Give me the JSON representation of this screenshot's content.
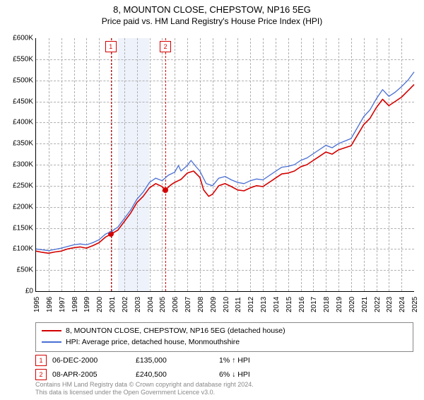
{
  "title": "8, MOUNTON CLOSE, CHEPSTOW, NP16 5EG",
  "subtitle": "Price paid vs. HM Land Registry's House Price Index (HPI)",
  "chart": {
    "type": "line",
    "xYears": {
      "min": 1995,
      "max": 2025,
      "step": 1
    },
    "yAxis": {
      "min": 0,
      "max": 600000,
      "step": 50000,
      "prefix": "£",
      "labels": [
        "£0",
        "£50K",
        "£100K",
        "£150K",
        "£200K",
        "£250K",
        "£300K",
        "£350K",
        "£400K",
        "£450K",
        "£500K",
        "£550K",
        "£600K"
      ]
    },
    "grid_color": "#b0b0b0",
    "background_bands": [
      {
        "start": 2001.5,
        "end": 2004.0,
        "color": "#eef2fb"
      }
    ],
    "sale_lines": [
      {
        "id": "1",
        "x": 2000.93,
        "price": 135000
      },
      {
        "id": "2",
        "x": 2005.27,
        "price": 240500
      }
    ],
    "series": [
      {
        "name": "price_paid",
        "label": "8, MOUNTON CLOSE, CHEPSTOW, NP16 5EG (detached house)",
        "color": "#d40000",
        "width": 1.6,
        "points": [
          [
            1995.0,
            95000
          ],
          [
            1995.5,
            92000
          ],
          [
            1996.0,
            90000
          ],
          [
            1996.5,
            93000
          ],
          [
            1997.0,
            95000
          ],
          [
            1997.5,
            100000
          ],
          [
            1998.0,
            103000
          ],
          [
            1998.5,
            105000
          ],
          [
            1999.0,
            102000
          ],
          [
            1999.5,
            108000
          ],
          [
            2000.0,
            115000
          ],
          [
            2000.5,
            128000
          ],
          [
            2000.93,
            135000
          ],
          [
            2001.5,
            145000
          ],
          [
            2002.0,
            165000
          ],
          [
            2002.5,
            185000
          ],
          [
            2003.0,
            210000
          ],
          [
            2003.5,
            225000
          ],
          [
            2004.0,
            245000
          ],
          [
            2004.5,
            255000
          ],
          [
            2005.0,
            248000
          ],
          [
            2005.27,
            240500
          ],
          [
            2005.7,
            252000
          ],
          [
            2006.0,
            258000
          ],
          [
            2006.5,
            265000
          ],
          [
            2007.0,
            280000
          ],
          [
            2007.5,
            285000
          ],
          [
            2008.0,
            270000
          ],
          [
            2008.3,
            240000
          ],
          [
            2008.7,
            225000
          ],
          [
            2009.0,
            230000
          ],
          [
            2009.5,
            250000
          ],
          [
            2010.0,
            255000
          ],
          [
            2010.5,
            248000
          ],
          [
            2011.0,
            240000
          ],
          [
            2011.5,
            238000
          ],
          [
            2012.0,
            245000
          ],
          [
            2012.5,
            250000
          ],
          [
            2013.0,
            248000
          ],
          [
            2013.5,
            258000
          ],
          [
            2014.0,
            268000
          ],
          [
            2014.5,
            278000
          ],
          [
            2015.0,
            280000
          ],
          [
            2015.5,
            285000
          ],
          [
            2016.0,
            295000
          ],
          [
            2016.5,
            300000
          ],
          [
            2017.0,
            310000
          ],
          [
            2017.5,
            320000
          ],
          [
            2018.0,
            330000
          ],
          [
            2018.5,
            325000
          ],
          [
            2019.0,
            335000
          ],
          [
            2019.5,
            340000
          ],
          [
            2020.0,
            345000
          ],
          [
            2020.5,
            370000
          ],
          [
            2021.0,
            395000
          ],
          [
            2021.5,
            410000
          ],
          [
            2022.0,
            435000
          ],
          [
            2022.5,
            455000
          ],
          [
            2023.0,
            440000
          ],
          [
            2023.5,
            450000
          ],
          [
            2024.0,
            460000
          ],
          [
            2024.5,
            475000
          ],
          [
            2025.0,
            490000
          ]
        ]
      },
      {
        "name": "hpi",
        "label": "HPI: Average price, detached house, Monmouthshire",
        "color": "#4a6fd4",
        "width": 1.3,
        "points": [
          [
            1995.0,
            100000
          ],
          [
            1995.5,
            98000
          ],
          [
            1996.0,
            96000
          ],
          [
            1996.5,
            99000
          ],
          [
            1997.0,
            102000
          ],
          [
            1997.5,
            106000
          ],
          [
            1998.0,
            110000
          ],
          [
            1998.5,
            112000
          ],
          [
            1999.0,
            110000
          ],
          [
            1999.5,
            115000
          ],
          [
            2000.0,
            122000
          ],
          [
            2000.5,
            135000
          ],
          [
            2001.0,
            142000
          ],
          [
            2001.5,
            152000
          ],
          [
            2002.0,
            172000
          ],
          [
            2002.5,
            192000
          ],
          [
            2003.0,
            218000
          ],
          [
            2003.5,
            235000
          ],
          [
            2004.0,
            258000
          ],
          [
            2004.5,
            268000
          ],
          [
            2005.0,
            262000
          ],
          [
            2005.5,
            275000
          ],
          [
            2006.0,
            282000
          ],
          [
            2006.3,
            298000
          ],
          [
            2006.5,
            285000
          ],
          [
            2007.0,
            298000
          ],
          [
            2007.3,
            310000
          ],
          [
            2007.7,
            295000
          ],
          [
            2008.0,
            285000
          ],
          [
            2008.5,
            255000
          ],
          [
            2009.0,
            250000
          ],
          [
            2009.5,
            268000
          ],
          [
            2010.0,
            272000
          ],
          [
            2010.5,
            264000
          ],
          [
            2011.0,
            258000
          ],
          [
            2011.5,
            255000
          ],
          [
            2012.0,
            262000
          ],
          [
            2012.5,
            266000
          ],
          [
            2013.0,
            264000
          ],
          [
            2013.5,
            274000
          ],
          [
            2014.0,
            284000
          ],
          [
            2014.5,
            294000
          ],
          [
            2015.0,
            296000
          ],
          [
            2015.5,
            300000
          ],
          [
            2016.0,
            310000
          ],
          [
            2016.5,
            316000
          ],
          [
            2017.0,
            326000
          ],
          [
            2017.5,
            336000
          ],
          [
            2018.0,
            346000
          ],
          [
            2018.5,
            340000
          ],
          [
            2019.0,
            350000
          ],
          [
            2019.5,
            356000
          ],
          [
            2020.0,
            362000
          ],
          [
            2020.5,
            388000
          ],
          [
            2021.0,
            414000
          ],
          [
            2021.5,
            430000
          ],
          [
            2022.0,
            456000
          ],
          [
            2022.5,
            478000
          ],
          [
            2023.0,
            462000
          ],
          [
            2023.5,
            472000
          ],
          [
            2024.0,
            485000
          ],
          [
            2024.5,
            500000
          ],
          [
            2025.0,
            520000
          ]
        ]
      }
    ]
  },
  "legend": [
    {
      "color": "#d40000",
      "label": "8, MOUNTON CLOSE, CHEPSTOW, NP16 5EG (detached house)"
    },
    {
      "color": "#4a6fd4",
      "label": "HPI: Average price, detached house, Monmouthshire"
    }
  ],
  "sales": [
    {
      "id": "1",
      "date": "06-DEC-2000",
      "price": "£135,000",
      "hpi_delta": "1% ↑ HPI"
    },
    {
      "id": "2",
      "date": "08-APR-2005",
      "price": "£240,500",
      "hpi_delta": "6% ↓ HPI"
    }
  ],
  "footer_line1": "Contains HM Land Registry data © Crown copyright and database right 2024.",
  "footer_line2": "This data is licensed under the Open Government Licence v3.0."
}
